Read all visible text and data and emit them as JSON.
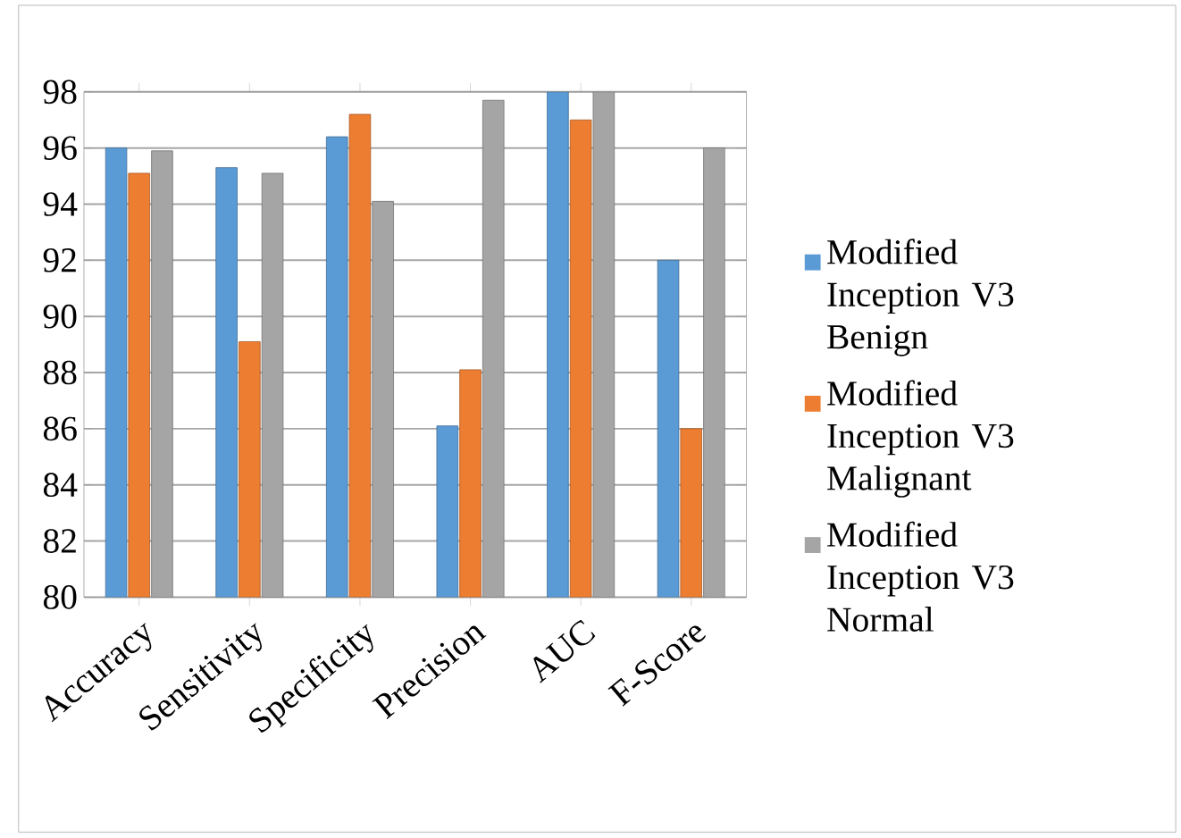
{
  "chart_data": {
    "type": "bar",
    "categories": [
      "Accuracy",
      "Sensitivity",
      "Specificity",
      "Precision",
      "AUC",
      "F-Score"
    ],
    "series": [
      {
        "name": "Modified Inception V3 Benign",
        "color": "#5b9bd5",
        "values": [
          96,
          95.3,
          96.4,
          86.1,
          98,
          92
        ]
      },
      {
        "name": "Modified Inception V3 Malignant",
        "color": "#ed7d31",
        "values": [
          95.1,
          89.1,
          97.2,
          88.1,
          97,
          86
        ]
      },
      {
        "name": "Modified Inception V3 Normal",
        "color": "#a5a5a5",
        "values": [
          95.9,
          95.1,
          94.1,
          97.7,
          98,
          96
        ]
      }
    ],
    "ylim": [
      80,
      98
    ],
    "yticks": [
      80,
      82,
      84,
      86,
      88,
      90,
      92,
      94,
      96,
      98
    ],
    "grid": "y",
    "legend": "right"
  }
}
